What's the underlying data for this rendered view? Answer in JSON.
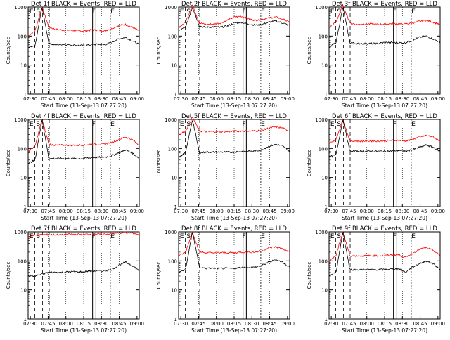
{
  "chart_data": [
    {
      "type": "line",
      "title": "Det 1f BLACK = Events, RED = LLD",
      "xlabel": "Start Time (13-Sep-13 07:27:20)",
      "ylabel": "Counts/sec",
      "x_ticks": [
        "07:30",
        "07:45",
        "08:00",
        "08:15",
        "08:30",
        "08:45",
        "09:00"
      ],
      "y_ticks": [
        "1",
        "10",
        "100",
        "1000"
      ],
      "ylim": [
        1,
        1000
      ],
      "scale": "log",
      "markers": [
        "E",
        "S",
        "F",
        "E"
      ],
      "series": [
        {
          "name": "Events",
          "color": "#000000",
          "values": [
            40,
            45,
            1000,
            55,
            50,
            52,
            50,
            48,
            47,
            50,
            52,
            50,
            60,
            80,
            90,
            70,
            50
          ]
        },
        {
          "name": "LLD",
          "color": "#ff0000",
          "values": [
            100,
            150,
            1000,
            200,
            170,
            160,
            160,
            150,
            150,
            160,
            160,
            150,
            180,
            230,
            250,
            200,
            150
          ]
        }
      ]
    },
    {
      "type": "line",
      "title": "Det 2f BLACK = Events, RED = LLD",
      "xlabel": "Start Time (13-Sep-13 07:27:20)",
      "ylabel": "Counts/sec",
      "x_ticks": [
        "07:30",
        "07:45",
        "08:00",
        "08:15",
        "08:30",
        "08:45",
        "09:00"
      ],
      "y_ticks": [
        "1",
        "10",
        "100",
        "1000"
      ],
      "ylim": [
        1,
        1000
      ],
      "scale": "log",
      "markers": [
        "E",
        "S",
        "F",
        "E"
      ],
      "series": [
        {
          "name": "Events",
          "color": "#000000",
          "values": [
            150,
            200,
            1000,
            220,
            200,
            210,
            200,
            220,
            280,
            300,
            260,
            240,
            250,
            300,
            330,
            280,
            230
          ]
        },
        {
          "name": "LLD",
          "color": "#ff0000",
          "values": [
            200,
            300,
            1200,
            280,
            250,
            260,
            280,
            350,
            450,
            480,
            400,
            350,
            380,
            420,
            450,
            380,
            300
          ]
        }
      ]
    },
    {
      "type": "line",
      "title": "Det 3f BLACK = Events, RED = LLD",
      "xlabel": "Start Time (13-Sep-13 07:27:20)",
      "ylabel": "Counts/sec",
      "x_ticks": [
        "07:30",
        "07:45",
        "08:00",
        "08:15",
        "08:30",
        "08:45",
        "09:00"
      ],
      "y_ticks": [
        "1",
        "10",
        "100",
        "1000"
      ],
      "ylim": [
        1,
        1000
      ],
      "scale": "log",
      "markers": [
        "E",
        "S",
        "F",
        "E"
      ],
      "series": [
        {
          "name": "Events",
          "color": "#000000",
          "values": [
            40,
            60,
            1000,
            60,
            55,
            55,
            55,
            55,
            60,
            60,
            58,
            60,
            70,
            90,
            100,
            80,
            60
          ]
        },
        {
          "name": "LLD",
          "color": "#ff0000",
          "values": [
            200,
            300,
            1200,
            280,
            250,
            260,
            260,
            250,
            260,
            270,
            260,
            260,
            280,
            320,
            350,
            300,
            250
          ]
        }
      ]
    },
    {
      "type": "line",
      "title": "Det 4f BLACK = Events, RED = LLD",
      "xlabel": "Start Time (13-Sep-13 07:27:20)",
      "ylabel": "Counts/sec",
      "x_ticks": [
        "07:30",
        "07:45",
        "08:00",
        "08:15",
        "08:30",
        "08:45",
        "09:00"
      ],
      "y_ticks": [
        "1",
        "10",
        "100",
        "1000"
      ],
      "ylim": [
        1,
        1000
      ],
      "scale": "log",
      "markers": [
        "E",
        "S",
        "F",
        "E"
      ],
      "series": [
        {
          "name": "Events",
          "color": "#000000",
          "values": [
            30,
            40,
            1000,
            45,
            45,
            45,
            45,
            45,
            45,
            48,
            50,
            50,
            55,
            70,
            90,
            70,
            45
          ]
        },
        {
          "name": "LLD",
          "color": "#ff0000",
          "values": [
            80,
            120,
            1000,
            140,
            130,
            130,
            130,
            130,
            130,
            140,
            140,
            140,
            160,
            200,
            250,
            200,
            130
          ]
        }
      ]
    },
    {
      "type": "line",
      "title": "Det 5f BLACK = Events, RED = LLD",
      "xlabel": "Start Time (13-Sep-13 07:27:20)",
      "ylabel": "Counts/sec",
      "x_ticks": [
        "07:30",
        "07:45",
        "08:00",
        "08:15",
        "08:30",
        "08:45",
        "09:00"
      ],
      "y_ticks": [
        "1",
        "10",
        "100",
        "1000"
      ],
      "ylim": [
        1,
        1000
      ],
      "scale": "log",
      "markers": [
        "E",
        "S",
        "F",
        "E"
      ],
      "series": [
        {
          "name": "Events",
          "color": "#000000",
          "values": [
            50,
            70,
            1000,
            70,
            75,
            75,
            75,
            75,
            75,
            80,
            80,
            80,
            90,
            120,
            140,
            120,
            80
          ]
        },
        {
          "name": "LLD",
          "color": "#ff0000",
          "values": [
            300,
            400,
            1200,
            400,
            380,
            380,
            380,
            380,
            390,
            400,
            400,
            400,
            420,
            500,
            560,
            500,
            400
          ]
        }
      ]
    },
    {
      "type": "line",
      "title": "Det 6f BLACK = Events, RED = LLD",
      "xlabel": "Start Time (13-Sep-13 07:27:20)",
      "ylabel": "Counts/sec",
      "x_ticks": [
        "07:30",
        "07:45",
        "08:00",
        "08:15",
        "08:30",
        "08:45",
        "09:00"
      ],
      "y_ticks": [
        "1",
        "10",
        "100",
        "1000"
      ],
      "ylim": [
        1,
        1000
      ],
      "scale": "log",
      "markers": [
        "E",
        "S",
        "F",
        "E"
      ],
      "series": [
        {
          "name": "Events",
          "color": "#000000",
          "values": [
            50,
            60,
            1000,
            80,
            80,
            80,
            80,
            80,
            80,
            82,
            85,
            80,
            90,
            110,
            130,
            110,
            80
          ]
        },
        {
          "name": "LLD",
          "color": "#ff0000",
          "values": [
            150,
            200,
            1000,
            180,
            180,
            180,
            180,
            180,
            180,
            190,
            190,
            180,
            200,
            250,
            280,
            250,
            180
          ]
        }
      ]
    },
    {
      "type": "line",
      "title": "Det 7f BLACK = Events, RED = LLD",
      "xlabel": "Start Time (13-Sep-13 07:27:20)",
      "ylabel": "Counts/sec",
      "x_ticks": [
        "07:30",
        "07:45",
        "08:00",
        "08:15",
        "08:30",
        "08:45",
        "09:00"
      ],
      "y_ticks": [
        "1",
        "10",
        "100",
        "1000"
      ],
      "ylim": [
        1,
        1000
      ],
      "scale": "log",
      "markers": [
        "E",
        "S",
        "F",
        "E"
      ],
      "series": [
        {
          "name": "Events",
          "color": "#000000",
          "values": [
            30,
            30,
            35,
            40,
            40,
            40,
            42,
            42,
            42,
            45,
            45,
            45,
            50,
            70,
            90,
            70,
            45
          ]
        },
        {
          "name": "LLD",
          "color": "#ff0000",
          "values": [
            700,
            750,
            800,
            800,
            800,
            800,
            820,
            820,
            820,
            830,
            830,
            830,
            850,
            900,
            950,
            900,
            850
          ]
        }
      ]
    },
    {
      "type": "line",
      "title": "Det 8f BLACK = Events, RED = LLD",
      "xlabel": "Start Time (13-Sep-13 07:27:20)",
      "ylabel": "Counts/sec",
      "x_ticks": [
        "07:30",
        "07:45",
        "08:00",
        "08:15",
        "08:30",
        "08:45",
        "09:00"
      ],
      "y_ticks": [
        "1",
        "10",
        "100",
        "1000"
      ],
      "ylim": [
        1,
        1000
      ],
      "scale": "log",
      "markers": [
        "E",
        "S",
        "F",
        "E"
      ],
      "series": [
        {
          "name": "Events",
          "color": "#000000",
          "values": [
            40,
            50,
            1000,
            60,
            55,
            55,
            55,
            55,
            55,
            60,
            60,
            60,
            70,
            90,
            110,
            90,
            60
          ]
        },
        {
          "name": "LLD",
          "color": "#ff0000",
          "values": [
            150,
            200,
            1000,
            200,
            190,
            190,
            190,
            190,
            190,
            200,
            200,
            200,
            220,
            280,
            300,
            260,
            200
          ]
        }
      ]
    },
    {
      "type": "line",
      "title": "Det 9f BLACK = Events, RED = LLD",
      "xlabel": "Start Time (13-Sep-13 07:27:20)",
      "ylabel": "Counts/sec",
      "x_ticks": [
        "07:30",
        "07:45",
        "08:00",
        "08:15",
        "08:30",
        "08:45",
        "09:00"
      ],
      "y_ticks": [
        "1",
        "10",
        "100",
        "1000"
      ],
      "ylim": [
        1,
        1000
      ],
      "scale": "log",
      "markers": [
        "E",
        "S",
        "F",
        "E"
      ],
      "series": [
        {
          "name": "Events",
          "color": "#000000",
          "values": [
            30,
            40,
            1000,
            50,
            50,
            50,
            50,
            50,
            50,
            52,
            55,
            40,
            60,
            80,
            100,
            80,
            50
          ]
        },
        {
          "name": "LLD",
          "color": "#ff0000",
          "values": [
            100,
            150,
            1000,
            150,
            150,
            150,
            150,
            150,
            150,
            160,
            160,
            130,
            180,
            250,
            280,
            230,
            150
          ]
        }
      ]
    }
  ]
}
